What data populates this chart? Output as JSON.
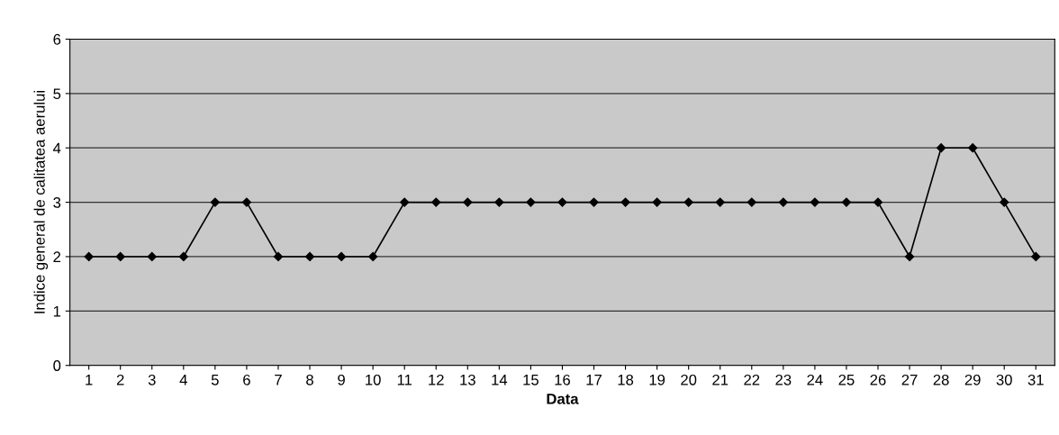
{
  "chart_data": {
    "type": "line",
    "xlabel": "Data",
    "ylabel": "Indice general de calitatea aerului",
    "categories": [
      "1",
      "2",
      "3",
      "4",
      "5",
      "6",
      "7",
      "8",
      "9",
      "10",
      "11",
      "12",
      "13",
      "14",
      "15",
      "16",
      "17",
      "18",
      "19",
      "20",
      "21",
      "22",
      "23",
      "24",
      "25",
      "26",
      "27",
      "28",
      "29",
      "30",
      "31"
    ],
    "series": [
      {
        "color": "#000000",
        "values": [
          2,
          2,
          2,
          2,
          3,
          3,
          2,
          2,
          2,
          2,
          3,
          3,
          3,
          3,
          3,
          3,
          3,
          3,
          3,
          3,
          3,
          3,
          3,
          3,
          3,
          3,
          2,
          4,
          4,
          3,
          2
        ]
      }
    ],
    "ylim": [
      0,
      6
    ],
    "yticks": [
      0,
      1,
      2,
      3,
      4,
      5,
      6
    ],
    "grid": "y",
    "marker": "diamond",
    "line_style": "solid",
    "legend": false
  }
}
